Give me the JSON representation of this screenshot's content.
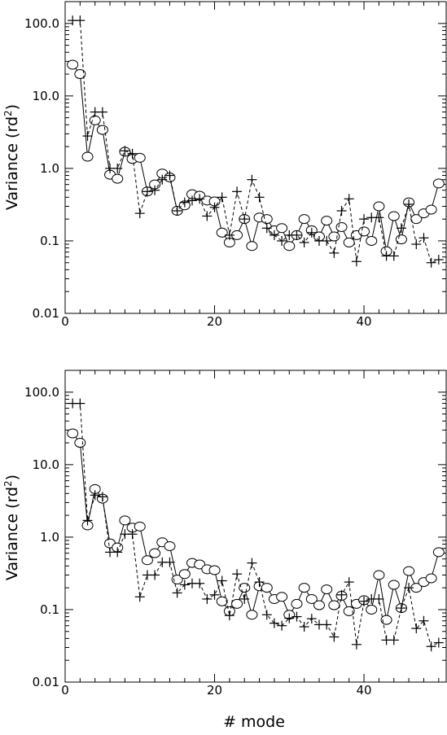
{
  "figure": {
    "xlabel_common": "# mode"
  },
  "chart_data": [
    {
      "type": "scatter",
      "title": "",
      "xlabel": "",
      "ylabel_main": "Variance (rd",
      "ylabel_sup": "2",
      "ylabel_close": ")",
      "xlim": [
        0,
        51
      ],
      "ylim": [
        0.01,
        200
      ],
      "yscale": "log",
      "xticks": [
        0,
        20,
        40
      ],
      "xtick_labels": [
        "0",
        "20",
        "40"
      ],
      "yticks": [
        0.01,
        0.1,
        1,
        10,
        100
      ],
      "ytick_labels": [
        "0.01",
        "0.1",
        "1.0",
        "10.0",
        "100.0"
      ],
      "grid": false,
      "series": [
        {
          "style": "circle-solid",
          "x": [
            1,
            2,
            3,
            4,
            5,
            6,
            7,
            8,
            9,
            10,
            11,
            12,
            13,
            14,
            15,
            16,
            17,
            18,
            19,
            20,
            21,
            22,
            23,
            24,
            25,
            26,
            27,
            28,
            29,
            30,
            31,
            32,
            33,
            34,
            35,
            36,
            37,
            38,
            39,
            40,
            41,
            42,
            43,
            44,
            45,
            46,
            47,
            48,
            49,
            50
          ],
          "values": [
            27,
            20,
            1.45,
            4.6,
            3.4,
            0.82,
            0.72,
            1.7,
            1.35,
            1.4,
            0.48,
            0.6,
            0.85,
            0.75,
            0.26,
            0.31,
            0.44,
            0.42,
            0.36,
            0.35,
            0.13,
            0.095,
            0.12,
            0.2,
            0.085,
            0.21,
            0.2,
            0.14,
            0.15,
            0.085,
            0.12,
            0.2,
            0.14,
            0.115,
            0.19,
            0.115,
            0.155,
            0.095,
            0.12,
            0.135,
            0.1,
            0.3,
            0.072,
            0.22,
            0.105,
            0.34,
            0.2,
            0.24,
            0.27,
            0.62
          ]
        },
        {
          "style": "plus-dashed",
          "x": [
            1,
            2,
            3,
            4,
            5,
            6,
            7,
            8,
            9,
            10,
            11,
            12,
            13,
            14,
            15,
            16,
            17,
            18,
            19,
            20,
            21,
            22,
            23,
            24,
            25,
            26,
            27,
            28,
            29,
            30,
            31,
            32,
            33,
            34,
            35,
            36,
            37,
            38,
            39,
            40,
            41,
            42,
            43,
            44,
            45,
            46,
            47,
            48,
            49,
            50
          ],
          "values": [
            110,
            110,
            2.8,
            6,
            6,
            1,
            1,
            1.75,
            1.6,
            0.24,
            0.48,
            0.5,
            0.7,
            0.8,
            0.26,
            0.34,
            0.36,
            0.38,
            0.22,
            0.29,
            0.4,
            0.12,
            0.48,
            0.2,
            0.7,
            0.4,
            0.15,
            0.12,
            0.1,
            0.12,
            0.12,
            0.095,
            0.13,
            0.1,
            0.1,
            0.068,
            0.26,
            0.38,
            0.052,
            0.2,
            0.21,
            0.21,
            0.062,
            0.062,
            0.15,
            0.32,
            0.09,
            0.11,
            0.05,
            0.055
          ]
        }
      ]
    },
    {
      "type": "scatter",
      "title": "",
      "xlabel": "# mode",
      "ylabel_main": "Variance (rd",
      "ylabel_sup": "2",
      "ylabel_close": ")",
      "xlim": [
        0,
        51
      ],
      "ylim": [
        0.01,
        200
      ],
      "yscale": "log",
      "xticks": [
        0,
        20,
        40
      ],
      "xtick_labels": [
        "0",
        "20",
        "40"
      ],
      "yticks": [
        0.01,
        0.1,
        1,
        10,
        100
      ],
      "ytick_labels": [
        "0.01",
        "0.1",
        "1.0",
        "10.0",
        "100.0"
      ],
      "grid": false,
      "series": [
        {
          "style": "circle-solid",
          "x": [
            1,
            2,
            3,
            4,
            5,
            6,
            7,
            8,
            9,
            10,
            11,
            12,
            13,
            14,
            15,
            16,
            17,
            18,
            19,
            20,
            21,
            22,
            23,
            24,
            25,
            26,
            27,
            28,
            29,
            30,
            31,
            32,
            33,
            34,
            35,
            36,
            37,
            38,
            39,
            40,
            41,
            42,
            43,
            44,
            45,
            46,
            47,
            48,
            49,
            50
          ],
          "values": [
            27,
            20,
            1.45,
            4.6,
            3.4,
            0.82,
            0.72,
            1.7,
            1.35,
            1.4,
            0.48,
            0.6,
            0.85,
            0.75,
            0.26,
            0.31,
            0.44,
            0.42,
            0.36,
            0.35,
            0.13,
            0.095,
            0.12,
            0.2,
            0.085,
            0.21,
            0.2,
            0.14,
            0.15,
            0.085,
            0.12,
            0.2,
            0.14,
            0.115,
            0.19,
            0.115,
            0.155,
            0.095,
            0.12,
            0.135,
            0.1,
            0.3,
            0.072,
            0.22,
            0.105,
            0.34,
            0.2,
            0.24,
            0.27,
            0.62
          ]
        },
        {
          "style": "plus-dashed",
          "x": [
            1,
            2,
            3,
            4,
            5,
            6,
            7,
            8,
            9,
            10,
            11,
            12,
            13,
            14,
            15,
            16,
            17,
            18,
            19,
            20,
            21,
            22,
            23,
            24,
            25,
            26,
            27,
            28,
            29,
            30,
            31,
            32,
            33,
            34,
            35,
            36,
            37,
            38,
            39,
            40,
            41,
            42,
            43,
            44,
            45,
            46,
            47,
            48,
            49,
            50
          ],
          "values": [
            70,
            70,
            1.7,
            3.8,
            3.6,
            0.62,
            0.62,
            1.1,
            1.1,
            0.15,
            0.3,
            0.3,
            0.45,
            0.45,
            0.17,
            0.22,
            0.23,
            0.23,
            0.14,
            0.16,
            0.25,
            0.083,
            0.31,
            0.14,
            0.44,
            0.24,
            0.085,
            0.065,
            0.06,
            0.076,
            0.08,
            0.058,
            0.075,
            0.062,
            0.062,
            0.042,
            0.16,
            0.24,
            0.033,
            0.13,
            0.14,
            0.14,
            0.038,
            0.038,
            0.105,
            0.2,
            0.055,
            0.07,
            0.031,
            0.035
          ]
        }
      ]
    }
  ]
}
